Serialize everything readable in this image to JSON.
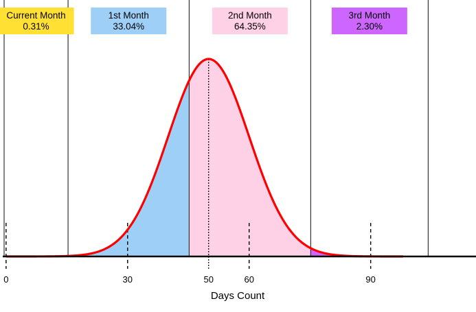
{
  "chart_data": {
    "type": "area",
    "title": "",
    "xlabel": "Days Count",
    "ylabel": "",
    "xlim": [
      -1.5,
      116
    ],
    "x_ticks": [
      0,
      30,
      50,
      60,
      90
    ],
    "curve": {
      "distribution": "normal",
      "mean": 50,
      "std_dev": 10,
      "x_range": [
        0,
        98
      ],
      "color": "#ff0000"
    },
    "mean_line": 50,
    "boundaries": [
      15.3,
      45.2,
      75.2,
      104.2
    ],
    "regions": [
      {
        "label": "Current Month",
        "percent": "0.31%",
        "x_range": [
          0,
          15.3
        ],
        "color": "#ffe033"
      },
      {
        "label": "1st Month",
        "percent": "33.04%",
        "x_range": [
          15.3,
          45.2
        ],
        "color": "#9ecff7"
      },
      {
        "label": "2nd Month",
        "percent": "64.35%",
        "x_range": [
          45.2,
          75.2
        ],
        "color": "#ffd1e6"
      },
      {
        "label": "3rd Month",
        "percent": "2.30%",
        "x_range": [
          75.2,
          98
        ],
        "color": "#cc66ff"
      }
    ],
    "grid": false,
    "legend": "none"
  }
}
